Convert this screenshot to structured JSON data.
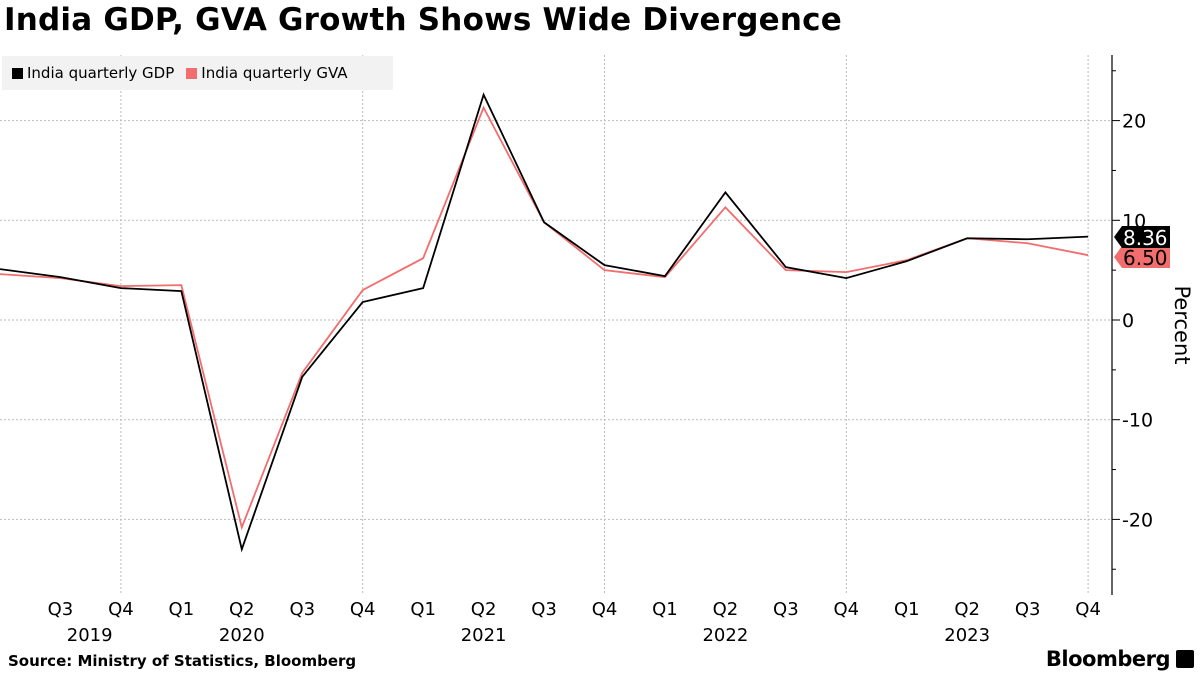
{
  "title": "India GDP, GVA Growth Shows Wide Divergence",
  "source": "Source: Ministry of Statistics, Bloomberg",
  "brand": "Bloomberg",
  "colors": {
    "gdp": "#000000",
    "gva": "#f26d6d",
    "grid": "#bbbbbb"
  },
  "chart_data": {
    "type": "line",
    "title": "India GDP, GVA Growth Shows Wide Divergence",
    "ylabel": "Percent",
    "ylim": [
      -27.5,
      26.5
    ],
    "yticks": [
      20,
      10,
      0,
      -10,
      -20
    ],
    "grid": true,
    "legend_placement": "top-left",
    "x": [
      "2019-Q2",
      "2019-Q3",
      "2019-Q4",
      "2020-Q1",
      "2020-Q2",
      "2020-Q3",
      "2020-Q4",
      "2021-Q1",
      "2021-Q2",
      "2021-Q3",
      "2021-Q4",
      "2022-Q1",
      "2022-Q2",
      "2022-Q3",
      "2022-Q4",
      "2023-Q1",
      "2023-Q2",
      "2023-Q3",
      "2023-Q4"
    ],
    "xtick_labels": [
      "Q3",
      "Q4",
      "Q1",
      "Q2",
      "Q3",
      "Q4",
      "Q1",
      "Q2",
      "Q3",
      "Q4",
      "Q1",
      "Q2",
      "Q3",
      "Q4",
      "Q1",
      "Q2",
      "Q3",
      "Q4"
    ],
    "year_labels": [
      "2019",
      "2020",
      "2021",
      "2022",
      "2023"
    ],
    "series": [
      {
        "name": "India quarterly GDP",
        "color": "#000000",
        "last_label": "8.36",
        "values": [
          5.1,
          4.3,
          3.2,
          2.9,
          -23.0,
          -5.7,
          1.8,
          3.2,
          22.6,
          9.8,
          5.5,
          4.4,
          12.8,
          5.3,
          4.2,
          5.9,
          8.2,
          8.1,
          8.36
        ]
      },
      {
        "name": "India quarterly GVA",
        "color": "#f26d6d",
        "last_label": "6.50",
        "values": [
          4.6,
          4.2,
          3.4,
          3.5,
          -20.8,
          -5.3,
          3.0,
          6.2,
          21.3,
          9.8,
          5.0,
          4.3,
          11.3,
          5.0,
          4.8,
          6.0,
          8.2,
          7.7,
          6.5
        ]
      }
    ]
  }
}
